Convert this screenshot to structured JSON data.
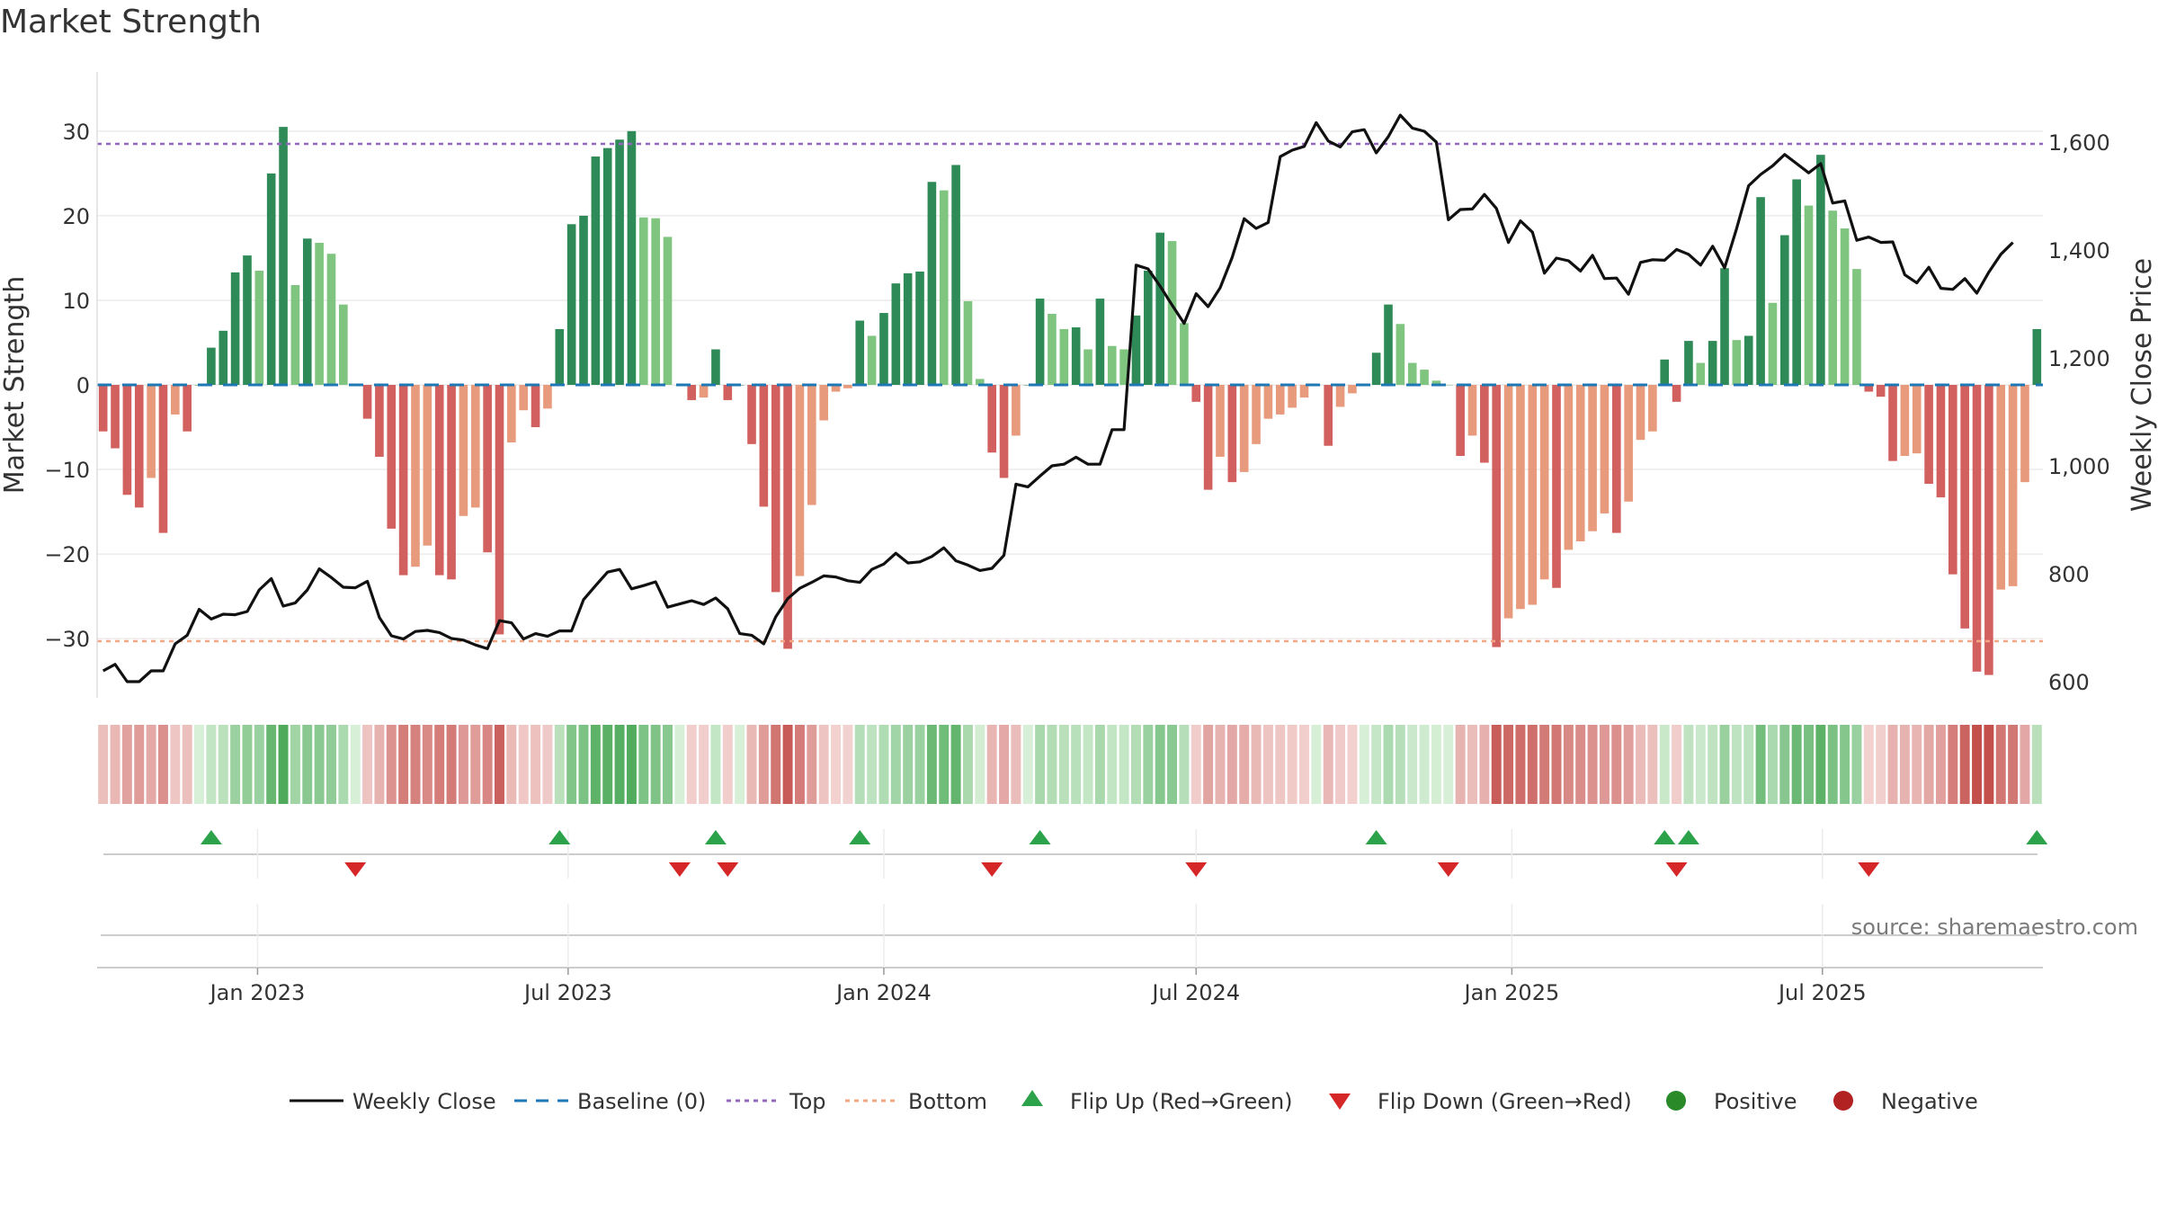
{
  "title": "Market Strength",
  "source": "source: sharemaestro.com",
  "chart_data": {
    "type": "bar",
    "start_date": "2022-10-03",
    "week_days": 7,
    "x_ticks": [
      {
        "label": "Jan 2023",
        "date": "2023-01-01"
      },
      {
        "label": "Jul 2023",
        "date": "2023-07-01"
      },
      {
        "label": "Jan 2024",
        "date": "2024-01-01"
      },
      {
        "label": "Jul 2024",
        "date": "2024-07-01"
      },
      {
        "label": "Jan 2025",
        "date": "2025-01-01"
      },
      {
        "label": "Jul 2025",
        "date": "2025-07-01"
      }
    ],
    "y_left": {
      "label": "Market Strength",
      "range": [
        -37,
        37
      ],
      "ticks": [
        30,
        20,
        10,
        0,
        -10,
        -20,
        -30
      ],
      "tick_labels": [
        "30",
        "20",
        "10",
        "0",
        "−10",
        "−20",
        "−30"
      ]
    },
    "y_right": {
      "label": "Weekly Close Price",
      "range": [
        570,
        1730
      ],
      "ticks": [
        1600,
        1400,
        1200,
        1000,
        800,
        600
      ],
      "tick_labels": [
        "1,600",
        "1,400",
        "1,200",
        "1,000",
        "800",
        "600"
      ]
    },
    "top_line": 28.5,
    "bottom_line": -30.3,
    "strength": [
      -5.5,
      -7.5,
      -13,
      -14.5,
      -11,
      -17.5,
      -3.5,
      -5.5,
      0,
      4.4,
      6.4,
      13.3,
      15.3,
      13.5,
      25,
      30.5,
      11.8,
      17.3,
      16.8,
      15.5,
      9.5,
      0,
      -4,
      -8.5,
      -17,
      -22.5,
      -21.5,
      -19,
      -22.5,
      -23,
      -15.5,
      -14.5,
      -19.8,
      -29.5,
      -6.8,
      -3,
      -5,
      -2.8,
      6.6,
      19,
      20,
      27,
      28,
      29,
      30,
      19.8,
      19.7,
      17.5,
      0,
      -1.8,
      -1.5,
      4.2,
      -1.8,
      0,
      -7,
      -14.4,
      -24.5,
      -31.2,
      -22.6,
      -14.2,
      -4.2,
      -0.8,
      -0.4,
      7.6,
      5.8,
      8.5,
      12,
      13.2,
      13.4,
      24,
      23,
      26,
      9.9,
      0.7,
      -8,
      -11,
      -6,
      0,
      10.2,
      8.4,
      6.6,
      6.8,
      4.2,
      10.2,
      4.6,
      4.2,
      8.2,
      13.5,
      18,
      17,
      7.3,
      -2,
      -12.4,
      -8.5,
      -11.5,
      -10.3,
      -7,
      -4,
      -3.5,
      -2.7,
      -1.5,
      0,
      -7.2,
      -2.6,
      -1,
      0,
      3.8,
      9.5,
      7.2,
      2.6,
      1.8,
      0.5,
      0,
      -8.4,
      -6,
      -9.2,
      -31,
      -27.6,
      -26.5,
      -26,
      -23,
      -24,
      -19.5,
      -18.5,
      -17.3,
      -15.2,
      -17.5,
      -13.8,
      -6.5,
      -5.5,
      3,
      -2,
      5.2,
      2.6,
      5.2,
      13.8,
      5.3,
      5.8,
      22.2,
      9.7,
      17.7,
      24.3,
      21.2,
      27.2,
      20.6,
      18.5,
      13.7,
      -0.8,
      -1.4,
      -9,
      -8.4,
      -8.1,
      -11.7,
      -13.3,
      -22.4,
      -28.8,
      -33.9,
      -34.3,
      -24.2,
      -23.8,
      -11.5,
      6.6
    ],
    "close": [
      620,
      632,
      600,
      600,
      620,
      620,
      670,
      686,
      734,
      716,
      725,
      724,
      730,
      770,
      791,
      740,
      746,
      770,
      809,
      793,
      775,
      774,
      786,
      719,
      685,
      679,
      693,
      695,
      691,
      680,
      677,
      668,
      661,
      713,
      709,
      679,
      689,
      684,
      694,
      694,
      752,
      778,
      803,
      808,
      772,
      778,
      785,
      738,
      744,
      750,
      743,
      755,
      735,
      689,
      686,
      670,
      720,
      754,
      773,
      784,
      796,
      794,
      787,
      784,
      808,
      818,
      838,
      820,
      822,
      832,
      848,
      824,
      816,
      806,
      810,
      834,
      966,
      961,
      981,
      1000,
      1003,
      1016,
      1003,
      1003,
      1067,
      1067,
      1372,
      1365,
      1333,
      1298,
      1264,
      1319,
      1295,
      1330,
      1386,
      1458,
      1440,
      1451,
      1573,
      1585,
      1592,
      1636,
      1602,
      1591,
      1619,
      1623,
      1580,
      1610,
      1650,
      1626,
      1620,
      1600,
      1456,
      1475,
      1476,
      1503,
      1477,
      1414,
      1454,
      1433,
      1357,
      1385,
      1380,
      1361,
      1390,
      1347,
      1348,
      1318,
      1377,
      1382,
      1381,
      1401,
      1392,
      1372,
      1407,
      1367,
      1440,
      1519,
      1540,
      1556,
      1577,
      1560,
      1543,
      1560,
      1487,
      1491,
      1418,
      1424,
      1414,
      1415,
      1354,
      1339,
      1368,
      1329,
      1327,
      1347,
      1320,
      1359,
      1392,
      1414
    ],
    "series": [
      {
        "name": "Weekly Close",
        "color": "#111111"
      },
      {
        "name": "Baseline (0)",
        "color": "#1f77b4"
      },
      {
        "name": "Top",
        "color": "#9467bd"
      },
      {
        "name": "Bottom",
        "color": "#f4a582"
      },
      {
        "name": "Flip Up (Red→Green)",
        "color": "#2ca24a"
      },
      {
        "name": "Flip Down (Green→Red)",
        "color": "#d62728"
      },
      {
        "name": "Positive",
        "color": "#2a8a2a"
      },
      {
        "name": "Negative",
        "color": "#b22222"
      }
    ],
    "colors": {
      "pos_strong": "#2e8b57",
      "pos_light": "#7fc47f",
      "neg_strong": "#d1605e",
      "neg_light": "#e89a7c",
      "price": "#111111",
      "baseline": "#1f77b4",
      "top": "#9467bd",
      "bottom": "#f4a582",
      "flip_up": "#2ca24a",
      "flip_down": "#d62728"
    },
    "legend_position": "bottom-center"
  }
}
